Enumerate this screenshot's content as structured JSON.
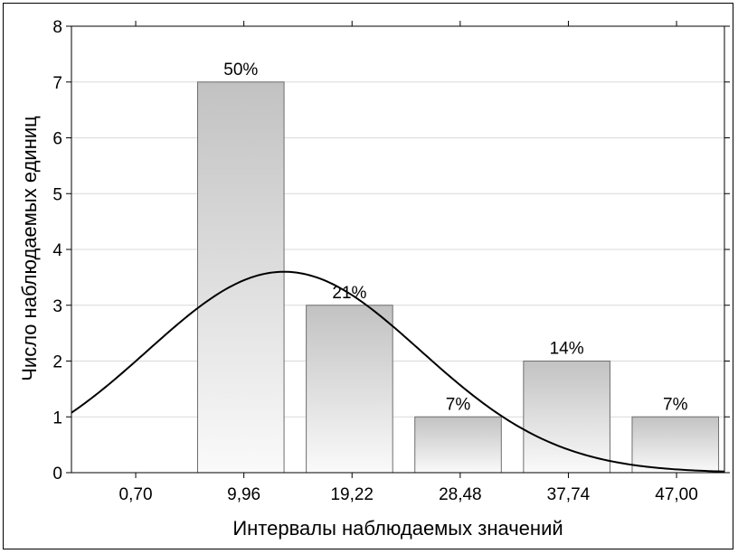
{
  "chart_data": {
    "type": "bar",
    "title": "",
    "xlabel": "Интервалы наблюдаемых значений",
    "ylabel": "Число наблюдаемых единиц",
    "x_tick_labels": [
      "0,70",
      "9,96",
      "19,22",
      "28,48",
      "37,74",
      "47,00"
    ],
    "x_ticks": [
      0.7,
      9.96,
      19.22,
      28.48,
      37.74,
      47.0
    ],
    "xlim": [
      -4.8,
      51.1
    ],
    "ylim": [
      0,
      8
    ],
    "y_ticks": [
      0,
      1,
      2,
      3,
      4,
      5,
      6,
      7,
      8
    ],
    "grid": "horizontal",
    "bars": [
      {
        "x_start": 6.0,
        "x_end": 13.4,
        "value": 7,
        "label": "50%"
      },
      {
        "x_start": 15.3,
        "x_end": 22.7,
        "value": 3,
        "label": "21%"
      },
      {
        "x_start": 24.6,
        "x_end": 32.0,
        "value": 1,
        "label": "7%"
      },
      {
        "x_start": 33.9,
        "x_end": 41.3,
        "value": 2,
        "label": "14%"
      },
      {
        "x_start": 43.2,
        "x_end": 50.6,
        "value": 1,
        "label": "7%"
      }
    ],
    "fit_curve": {
      "type": "normal",
      "mean": 13.4,
      "sd": 11.7,
      "peak": 3.6
    },
    "colors": {
      "bar_top": "#c2c2c2",
      "bar_bottom": "#fafafa",
      "bar_stroke": "#6e6e6e",
      "grid": "#d9d9d9",
      "curve": "#000000"
    }
  }
}
